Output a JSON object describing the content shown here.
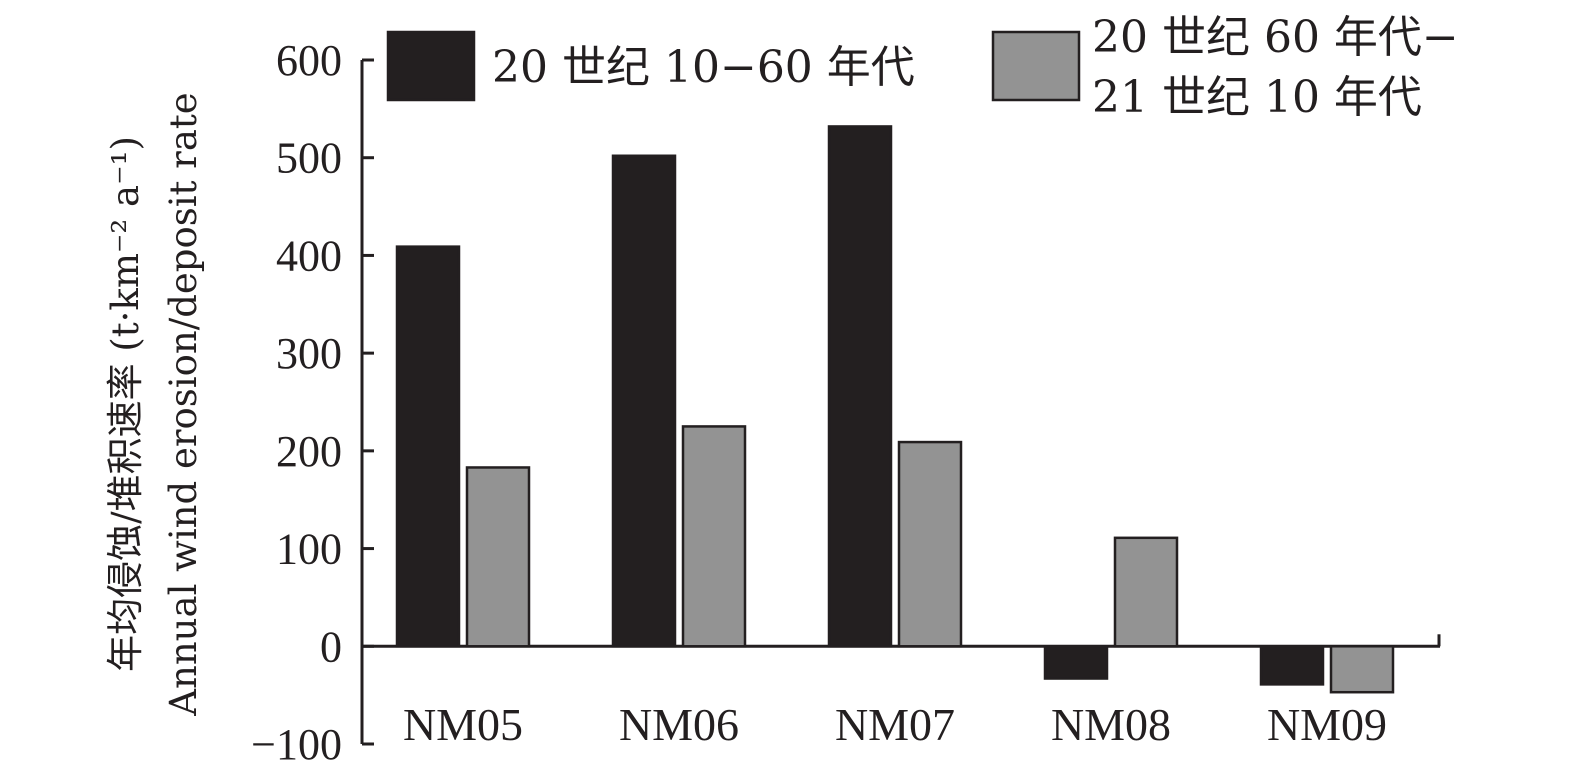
{
  "chart_data": {
    "type": "bar",
    "categories": [
      "NM05",
      "NM06",
      "NM07",
      "NM08",
      "NM09"
    ],
    "series": [
      {
        "name": "20 世纪 10−60 年代",
        "values": [
          409,
          502,
          532,
          -33,
          -39
        ],
        "color": "#231f20"
      },
      {
        "name": "20 世纪 60 年代−21 世纪 10 年代",
        "values": [
          183,
          225,
          209,
          111,
          -47
        ],
        "color": "#939393"
      }
    ],
    "ylabel": {
      "line1": "年均侵蚀/堆积速率 (t·km⁻² a⁻¹)",
      "line2": "Annual wind erosion/deposit rate"
    },
    "ylim": [
      -100,
      600
    ],
    "yticks": [
      -100,
      0,
      100,
      200,
      300,
      400,
      500,
      600
    ],
    "ytick_labels": [
      "−100",
      "0",
      "100",
      "200",
      "300",
      "400",
      "500",
      "600"
    ],
    "legend": {
      "placement": "top",
      "entries": [
        {
          "lines": [
            "20 世纪 10−60 年代"
          ]
        },
        {
          "lines": [
            "20 世纪 60 年代−",
            "21 世纪 10 年代"
          ]
        }
      ]
    },
    "grid": false
  }
}
